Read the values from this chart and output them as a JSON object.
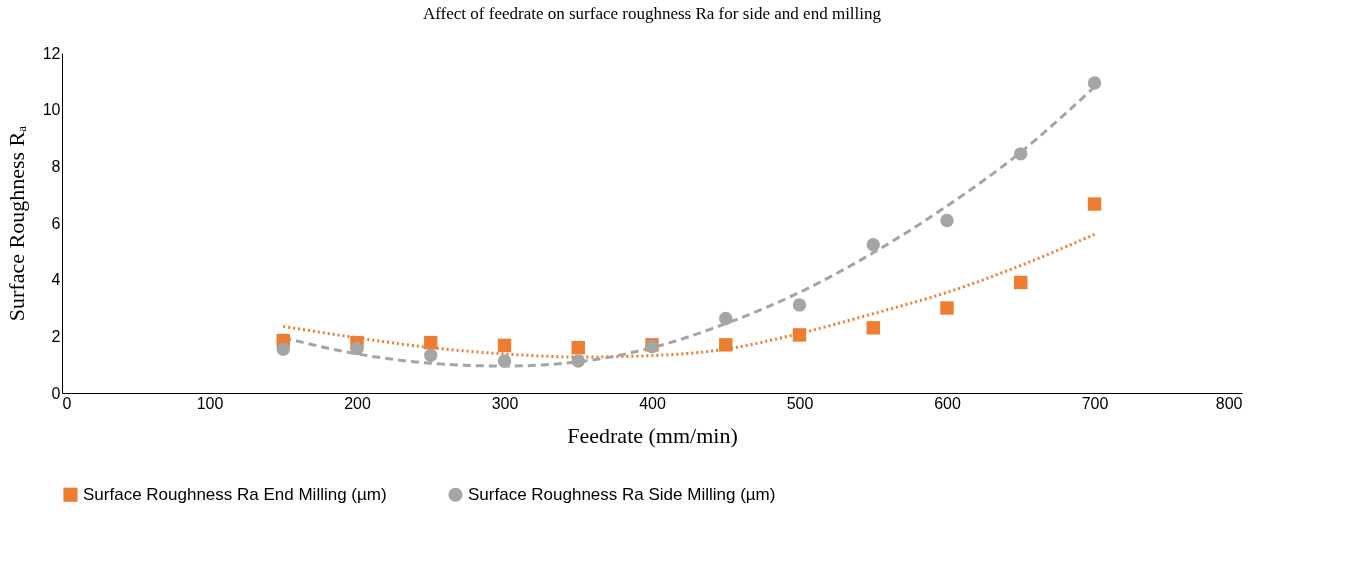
{
  "chart_data": {
    "type": "scatter",
    "title": "Affect of feedrate on surface roughness Ra for side and end milling",
    "xlabel": "Feedrate (mm/min)",
    "ylabel": "Surface Roughness Rₐ",
    "x": [
      150,
      200,
      250,
      300,
      350,
      400,
      450,
      500,
      550,
      600,
      650,
      700
    ],
    "series": [
      {
        "name": "Surface Roughness Ra End Milling (µm)",
        "marker": "square",
        "color": "#ed7d31",
        "values": [
          1.85,
          1.78,
          1.78,
          1.68,
          1.6,
          1.7,
          1.7,
          2.05,
          2.3,
          3.0,
          3.9,
          6.67
        ]
      },
      {
        "name": "Surface Roughness Ra Side Milling (µm)",
        "marker": "circle",
        "color": "#a5a5a5",
        "values": [
          1.54,
          1.57,
          1.33,
          1.13,
          1.13,
          1.64,
          2.63,
          3.11,
          5.23,
          6.09,
          8.44,
          10.94
        ]
      },
      {
        "type": "line",
        "line_style": "dotted",
        "color": "#ed7d31",
        "values": [
          2.35,
          1.95,
          1.6,
          1.38,
          1.27,
          1.32,
          1.55,
          2.1,
          2.8,
          3.55,
          4.5,
          5.6
        ]
      },
      {
        "type": "line",
        "line_style": "dashed",
        "color": "#a5a5a5",
        "values": [
          1.95,
          1.38,
          1.05,
          0.95,
          1.1,
          1.6,
          2.45,
          3.55,
          4.95,
          6.6,
          8.5,
          10.8
        ]
      }
    ],
    "xlim": [
      0,
      800
    ],
    "xticks": [
      0,
      100,
      200,
      300,
      400,
      500,
      600,
      700,
      800
    ],
    "ylim": [
      0,
      12
    ],
    "yticks": [
      0,
      2,
      4,
      6,
      8,
      10,
      12
    ],
    "grid": false,
    "legend": "bottom"
  }
}
